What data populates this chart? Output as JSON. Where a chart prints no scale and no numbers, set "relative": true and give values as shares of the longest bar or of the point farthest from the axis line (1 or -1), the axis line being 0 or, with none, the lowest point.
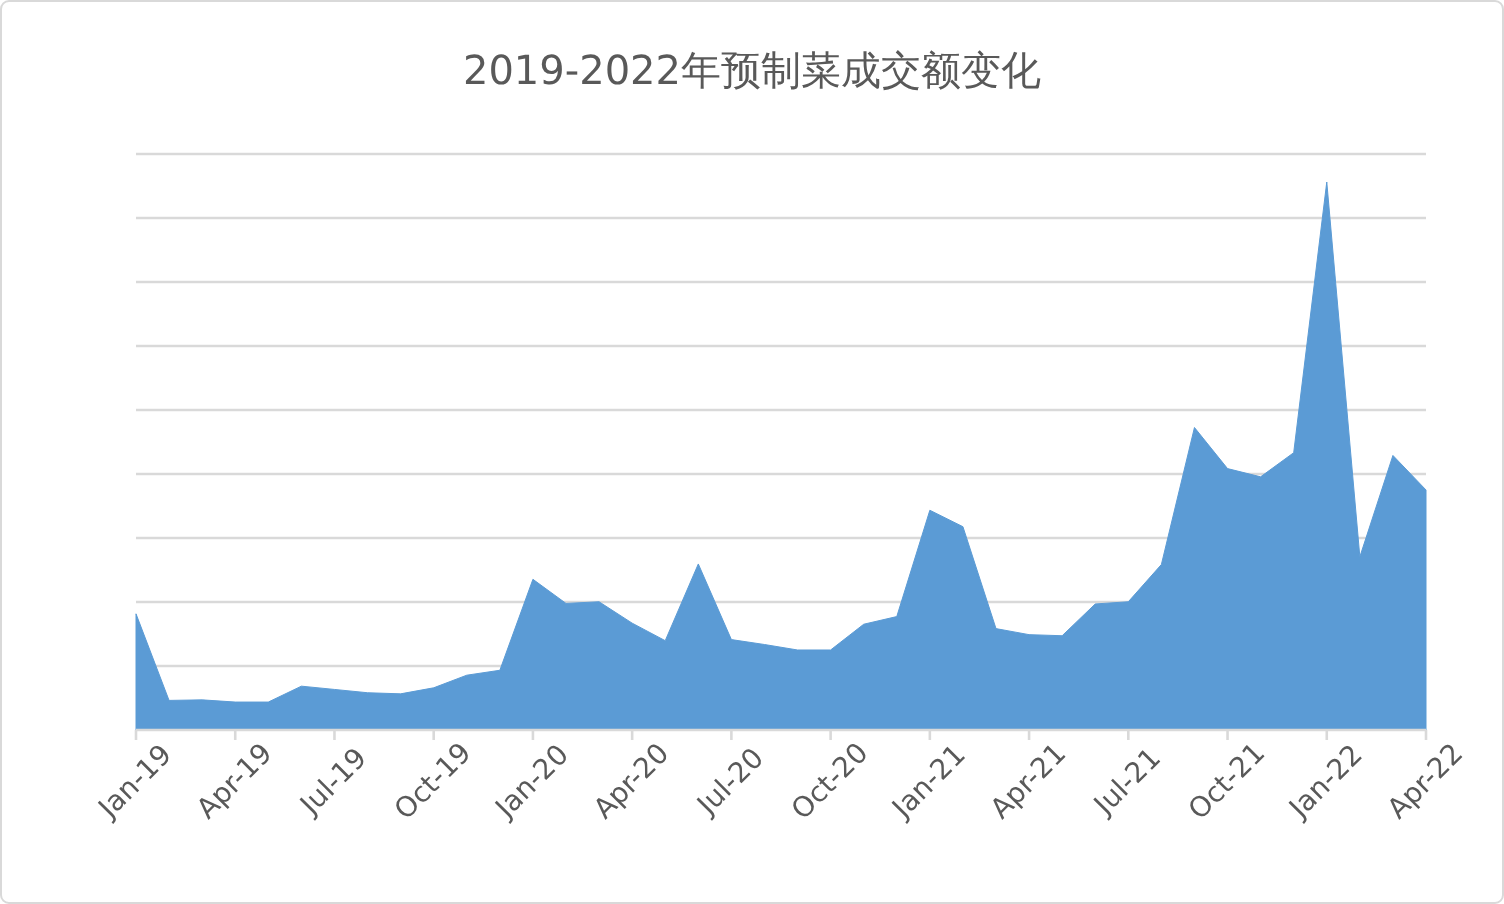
{
  "chart_data": {
    "type": "area",
    "title": "2019-2022年预制菜成交额变化",
    "relative": true,
    "grid": "y",
    "color": "#5b9bd5",
    "categories": [
      "Jan-19",
      null,
      null,
      "Apr-19",
      null,
      null,
      "Jul-19",
      null,
      null,
      "Oct-19",
      null,
      null,
      "Jan-20",
      null,
      null,
      "Apr-20",
      null,
      null,
      "Jul-20",
      null,
      null,
      "Oct-20",
      null,
      null,
      "Jan-21",
      null,
      null,
      "Apr-21",
      null,
      null,
      "Jul-21",
      null,
      null,
      "Oct-21",
      null,
      null,
      "Jan-22",
      null,
      null,
      "Apr-22"
    ],
    "values": [
      0.212,
      0.054,
      0.055,
      0.051,
      0.051,
      0.08,
      0.074,
      0.068,
      0.066,
      0.077,
      0.1,
      0.109,
      0.275,
      0.231,
      0.234,
      0.195,
      0.163,
      0.303,
      0.165,
      0.156,
      0.146,
      0.146,
      0.193,
      0.207,
      0.401,
      0.371,
      0.185,
      0.174,
      0.172,
      0.23,
      0.234,
      0.302,
      0.552,
      0.477,
      0.462,
      0.506,
      1,
      0.316,
      0.501,
      0.438
    ]
  }
}
